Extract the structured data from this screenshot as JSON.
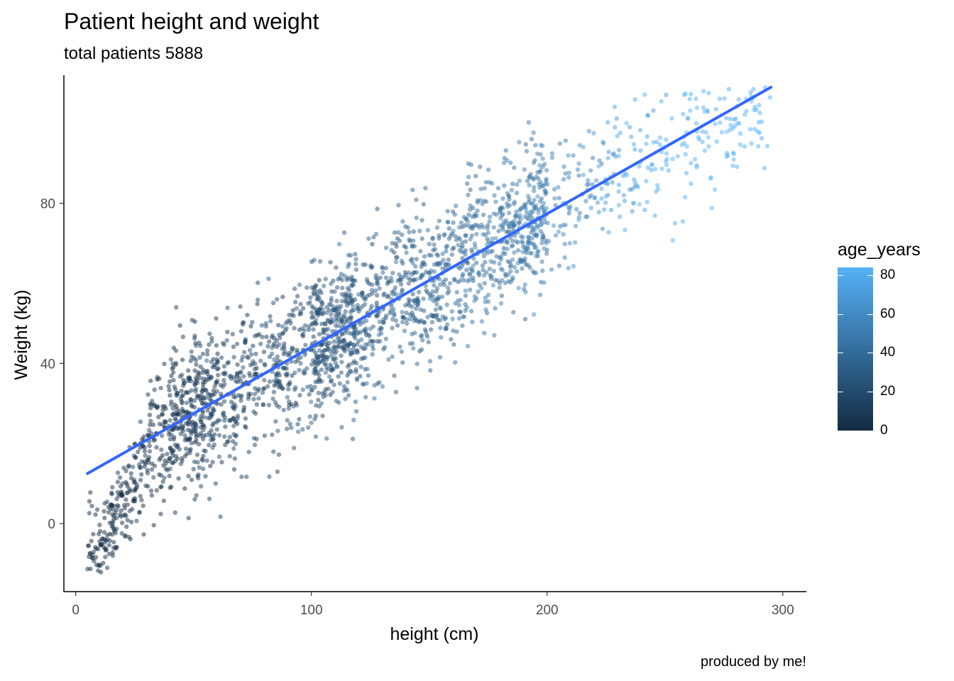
{
  "chart_data": {
    "type": "scatter",
    "title": "Patient height and weight",
    "subtitle": "total patients 5888",
    "caption": "produced by me!",
    "xlabel": "height (cm)",
    "ylabel": "Weight (kg)",
    "xlim": [
      -5,
      310
    ],
    "ylim": [
      -17,
      112
    ],
    "x_ticks": [
      0,
      100,
      200,
      300
    ],
    "y_ticks": [
      0,
      40,
      80
    ],
    "grid": false,
    "point_count": 5888,
    "color_scale": {
      "variable": "age_years",
      "low_color": "#132B43",
      "high_color": "#56B1F7",
      "range": [
        0,
        84
      ],
      "ticks": [
        0,
        20,
        40,
        60,
        80
      ],
      "legend_position": "right"
    },
    "trend_line": {
      "method": "linear",
      "color": "#3366FF",
      "x": [
        5,
        295
      ],
      "y": [
        12.5,
        109
      ]
    },
    "point_alpha": 0.5
  }
}
